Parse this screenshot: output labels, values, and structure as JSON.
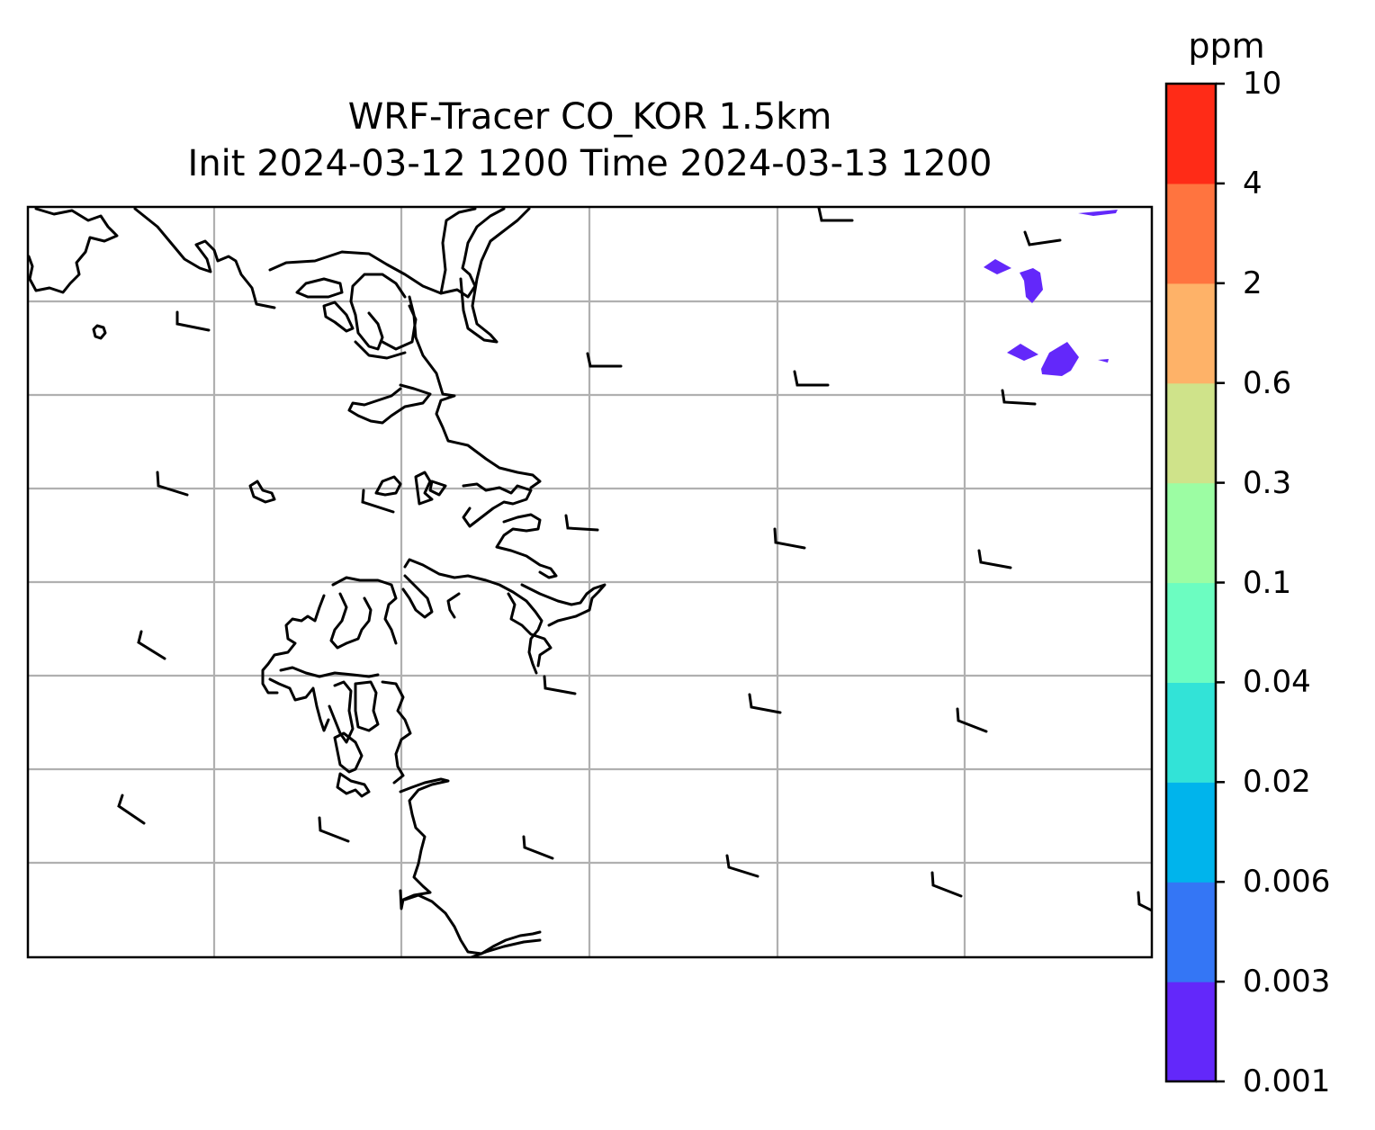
{
  "figure": {
    "title_line1": "WRF-Tracer CO_KOR 1.5km",
    "title_line2": "Init 2024-03-12 1200 Time 2024-03-13 1200"
  },
  "colorbar": {
    "unit": "ppm",
    "ticks": [
      "0.001",
      "0.003",
      "0.006",
      "0.02",
      "0.04",
      "0.1",
      "0.3",
      "0.6",
      "2",
      "4",
      "10"
    ],
    "colors": [
      "#6328fa",
      "#3476f5",
      "#00b4ec",
      "#32e3d7",
      "#6cfdc1",
      "#9cfda3",
      "#cfe38a",
      "#feb268",
      "#ff743f",
      "#ff2b17"
    ]
  },
  "map": {
    "coastline_color": "#000000",
    "gridline_color": "#b0b0b0",
    "contour_fill_color": "#6328fa",
    "wind_barb_color": "#000000"
  }
}
